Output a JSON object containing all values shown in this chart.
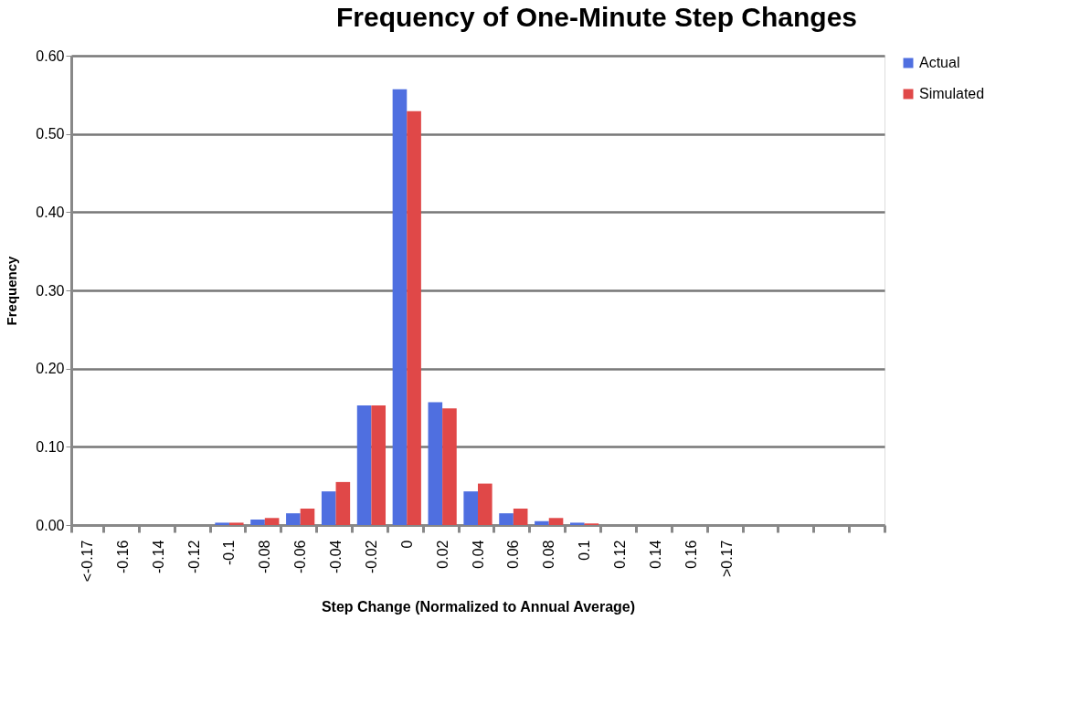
{
  "chart_data": {
    "type": "bar",
    "title": "Frequency of One-Minute Step Changes",
    "xlabel": "Step Change (Normalized to Annual Average)",
    "ylabel": "Frequency",
    "categories": [
      "<-0.17",
      "-0.16",
      "-0.14",
      "-0.12",
      "-0.1",
      "-0.08",
      "-0.06",
      "-0.04",
      "-0.02",
      "0",
      "0.02",
      "0.04",
      "0.06",
      "0.08",
      "0.1",
      "0.12",
      "0.14",
      "0.16",
      ">0.17",
      null,
      null,
      null,
      null
    ],
    "series": [
      {
        "name": "Actual",
        "color": "#4f6fe0",
        "values": [
          0,
          0,
          0,
          0,
          0.003,
          0.007,
          0.015,
          0.043,
          0.153,
          0.557,
          0.157,
          0.043,
          0.015,
          0.005,
          0.003,
          0,
          0,
          0,
          0,
          null,
          null,
          null,
          null
        ]
      },
      {
        "name": "Simulated",
        "color": "#e04848",
        "values": [
          0,
          0,
          0,
          0,
          0.003,
          0.009,
          0.021,
          0.055,
          0.153,
          0.529,
          0.149,
          0.053,
          0.021,
          0.009,
          0.002,
          0,
          0,
          0,
          0,
          null,
          null,
          null,
          null
        ]
      }
    ],
    "ylim": [
      0,
      0.6
    ],
    "yticks": [
      {
        "value": 0,
        "label": "0.00"
      },
      {
        "value": 0.1,
        "label": "0.10"
      },
      {
        "value": 0.2,
        "label": "0.20"
      },
      {
        "value": 0.3,
        "label": "0.30"
      },
      {
        "value": 0.4,
        "label": "0.40"
      },
      {
        "value": 0.5,
        "label": "0.50"
      },
      {
        "value": 0.6,
        "label": "0.60"
      }
    ],
    "grid": "y",
    "legend": "right"
  }
}
